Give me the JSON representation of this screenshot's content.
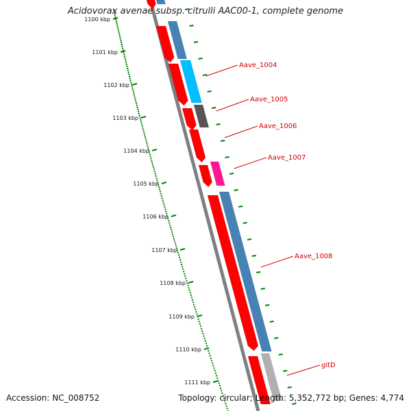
{
  "title": "Acidovorax avenae subsp. citrulli AAC00-1, complete genome",
  "footer": {
    "accession": "Accession: NC_008752",
    "topology": "Topology: circular; Length: 5,352,772 bp; Genes: 4,774"
  },
  "colors": {
    "backbone": "#808080",
    "red_gene": "#ff0000",
    "blue_gene": "#4682b4",
    "cyan_gene": "#00bfff",
    "gray_gene": "#555555",
    "magenta_gene": "#ff1493",
    "light_gray_gene": "#b0b0b0",
    "tick_green": "#008000",
    "label_red": "#d00000"
  },
  "axis": {
    "unit": "kbp",
    "ticks": [
      "1100 kbp",
      "1101 kbp",
      "1102 kbp",
      "1103 kbp",
      "1104 kbp",
      "1105 kbp",
      "1106 kbp",
      "1107 kbp",
      "1108 kbp",
      "1109 kbp",
      "1110 kbp",
      "1111 kbp"
    ]
  },
  "gene_labels": [
    "Aave_1004",
    "Aave_1005",
    "Aave_1006",
    "Aave_1007",
    "Aave_1008",
    "gltD"
  ]
}
